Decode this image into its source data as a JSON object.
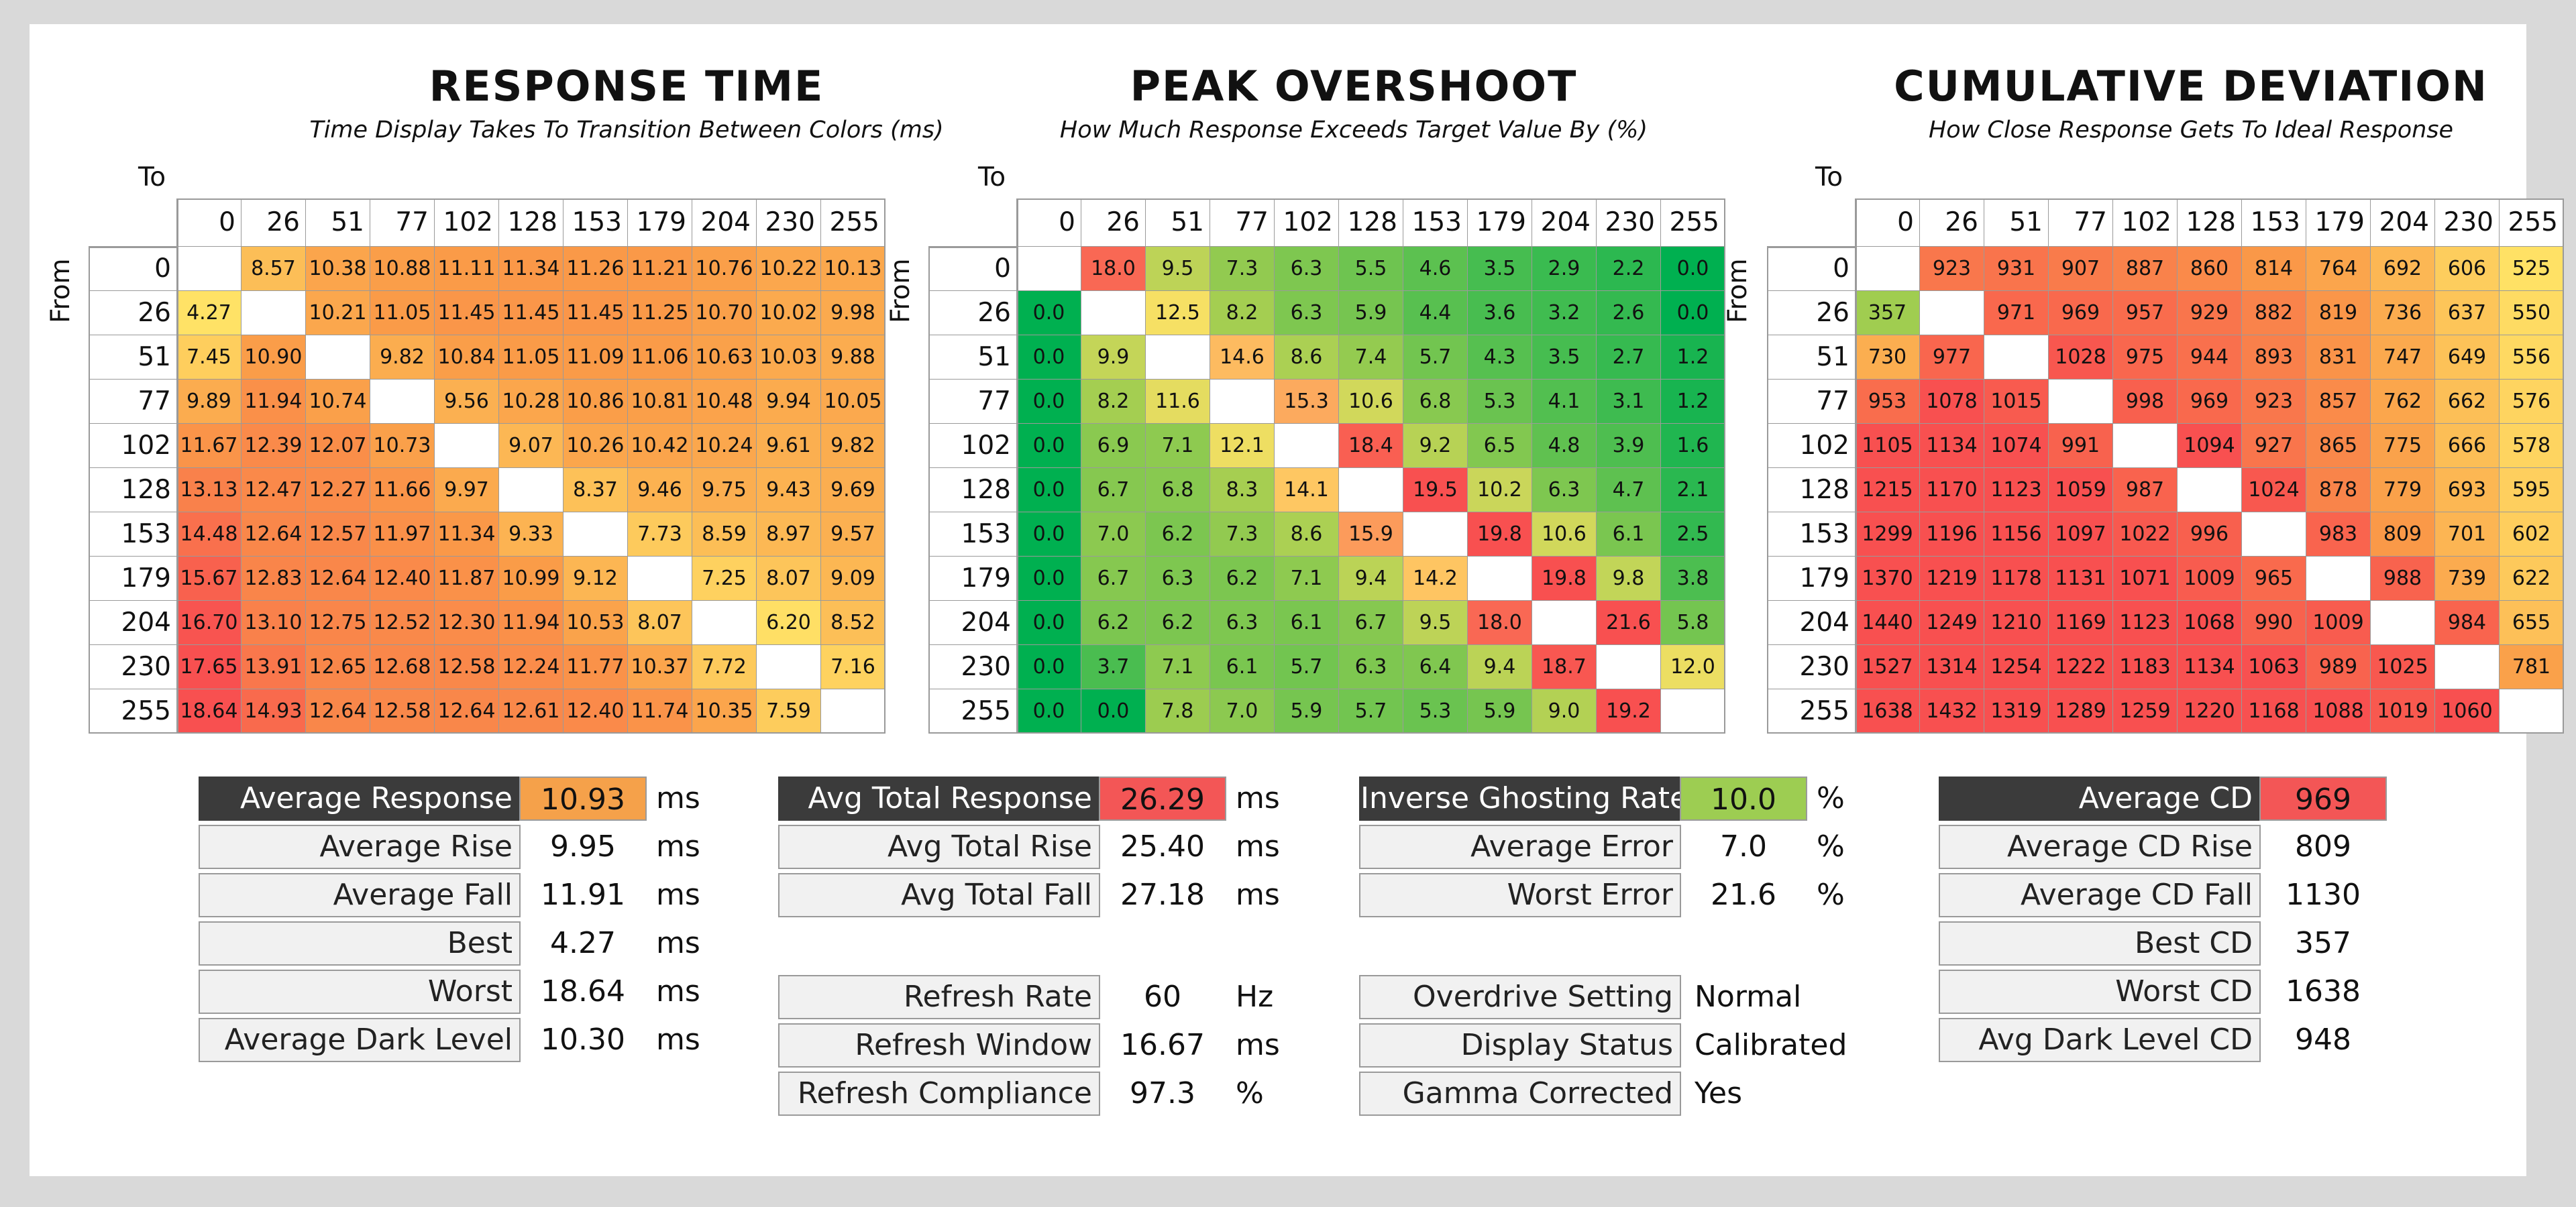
{
  "chart_data": [
    {
      "type": "heatmap",
      "title": "RESPONSE TIME",
      "subtitle": "Time Display Takes To Transition Between Colors (ms)",
      "xlabel": "To",
      "ylabel": "From",
      "color_scale": "low = yellow, high = red",
      "categories": [
        "0",
        "26",
        "51",
        "77",
        "102",
        "128",
        "153",
        "179",
        "204",
        "230",
        "255"
      ],
      "values": [
        [
          null,
          "8.57",
          "10.38",
          "10.88",
          "11.11",
          "11.34",
          "11.26",
          "11.21",
          "10.76",
          "10.22",
          "10.13"
        ],
        [
          "4.27",
          null,
          "10.21",
          "11.05",
          "11.45",
          "11.45",
          "11.45",
          "11.25",
          "10.70",
          "10.02",
          "9.98"
        ],
        [
          "7.45",
          "10.90",
          null,
          "9.82",
          "10.84",
          "11.05",
          "11.09",
          "11.06",
          "10.63",
          "10.03",
          "9.88"
        ],
        [
          "9.89",
          "11.94",
          "10.74",
          null,
          "9.56",
          "10.28",
          "10.86",
          "10.81",
          "10.48",
          "9.94",
          "10.05"
        ],
        [
          "11.67",
          "12.39",
          "12.07",
          "10.73",
          null,
          "9.07",
          "10.26",
          "10.42",
          "10.24",
          "9.61",
          "9.82"
        ],
        [
          "13.13",
          "12.47",
          "12.27",
          "11.66",
          "9.97",
          null,
          "8.37",
          "9.46",
          "9.75",
          "9.43",
          "9.69"
        ],
        [
          "14.48",
          "12.64",
          "12.57",
          "11.97",
          "11.34",
          "9.33",
          null,
          "7.73",
          "8.59",
          "8.97",
          "9.57"
        ],
        [
          "15.67",
          "12.83",
          "12.64",
          "12.40",
          "11.87",
          "10.99",
          "9.12",
          null,
          "7.25",
          "8.07",
          "9.09"
        ],
        [
          "16.70",
          "13.10",
          "12.75",
          "12.52",
          "12.30",
          "11.94",
          "10.53",
          "8.07",
          null,
          "6.20",
          "8.52"
        ],
        [
          "17.65",
          "13.91",
          "12.65",
          "12.68",
          "12.58",
          "12.24",
          "11.77",
          "10.37",
          "7.72",
          null,
          "7.16"
        ],
        [
          "18.64",
          "14.93",
          "12.64",
          "12.58",
          "12.64",
          "12.61",
          "12.40",
          "11.74",
          "10.35",
          "7.59",
          null
        ]
      ]
    },
    {
      "type": "heatmap",
      "title": "PEAK OVERSHOOT",
      "subtitle": "How Much Response Exceeds Target Value By (%)",
      "xlabel": "To",
      "ylabel": "From",
      "color_scale": "low = green, high = red",
      "categories": [
        "0",
        "26",
        "51",
        "77",
        "102",
        "128",
        "153",
        "179",
        "204",
        "230",
        "255"
      ],
      "values": [
        [
          null,
          "18.0",
          "9.5",
          "7.3",
          "6.3",
          "5.5",
          "4.6",
          "3.5",
          "2.9",
          "2.2",
          "0.0"
        ],
        [
          "0.0",
          null,
          "12.5",
          "8.2",
          "6.3",
          "5.9",
          "4.4",
          "3.6",
          "3.2",
          "2.6",
          "0.0"
        ],
        [
          "0.0",
          "9.9",
          null,
          "14.6",
          "8.6",
          "7.4",
          "5.7",
          "4.3",
          "3.5",
          "2.7",
          "1.2"
        ],
        [
          "0.0",
          "8.2",
          "11.6",
          null,
          "15.3",
          "10.6",
          "6.8",
          "5.3",
          "4.1",
          "3.1",
          "1.2"
        ],
        [
          "0.0",
          "6.9",
          "7.1",
          "12.1",
          null,
          "18.4",
          "9.2",
          "6.5",
          "4.8",
          "3.9",
          "1.6"
        ],
        [
          "0.0",
          "6.7",
          "6.8",
          "8.3",
          "14.1",
          null,
          "19.5",
          "10.2",
          "6.3",
          "4.7",
          "2.1"
        ],
        [
          "0.0",
          "7.0",
          "6.2",
          "7.3",
          "8.6",
          "15.9",
          null,
          "19.8",
          "10.6",
          "6.1",
          "2.5"
        ],
        [
          "0.0",
          "6.7",
          "6.3",
          "6.2",
          "7.1",
          "9.4",
          "14.2",
          null,
          "19.8",
          "9.8",
          "3.8"
        ],
        [
          "0.0",
          "6.2",
          "6.2",
          "6.3",
          "6.1",
          "6.7",
          "9.5",
          "18.0",
          null,
          "21.6",
          "5.8"
        ],
        [
          "0.0",
          "3.7",
          "7.1",
          "6.1",
          "5.7",
          "6.3",
          "6.4",
          "9.4",
          "18.7",
          null,
          "12.0"
        ],
        [
          "0.0",
          "0.0",
          "7.8",
          "7.0",
          "5.9",
          "5.7",
          "5.3",
          "5.9",
          "9.0",
          "19.2",
          null
        ]
      ]
    },
    {
      "type": "heatmap",
      "title": "CUMULATIVE DEVIATION",
      "subtitle": "How Close Response Gets To Ideal Response",
      "xlabel": "To",
      "ylabel": "From",
      "color_scale": "low = green, mid = yellow, high = red",
      "categories": [
        "0",
        "26",
        "51",
        "77",
        "102",
        "128",
        "153",
        "179",
        "204",
        "230",
        "255"
      ],
      "values": [
        [
          null,
          "923",
          "931",
          "907",
          "887",
          "860",
          "814",
          "764",
          "692",
          "606",
          "525"
        ],
        [
          "357",
          null,
          "971",
          "969",
          "957",
          "929",
          "882",
          "819",
          "736",
          "637",
          "550"
        ],
        [
          "730",
          "977",
          null,
          "1028",
          "975",
          "944",
          "893",
          "831",
          "747",
          "649",
          "556"
        ],
        [
          "953",
          "1078",
          "1015",
          null,
          "998",
          "969",
          "923",
          "857",
          "762",
          "662",
          "576"
        ],
        [
          "1105",
          "1134",
          "1074",
          "991",
          null,
          "1094",
          "927",
          "865",
          "775",
          "666",
          "578"
        ],
        [
          "1215",
          "1170",
          "1123",
          "1059",
          "987",
          null,
          "1024",
          "878",
          "779",
          "693",
          "595"
        ],
        [
          "1299",
          "1196",
          "1156",
          "1097",
          "1022",
          "996",
          null,
          "983",
          "809",
          "701",
          "602"
        ],
        [
          "1370",
          "1219",
          "1178",
          "1131",
          "1071",
          "1009",
          "965",
          null,
          "988",
          "739",
          "622"
        ],
        [
          "1440",
          "1249",
          "1210",
          "1169",
          "1123",
          "1068",
          "990",
          "1009",
          null,
          "984",
          "655"
        ],
        [
          "1527",
          "1314",
          "1254",
          "1222",
          "1183",
          "1134",
          "1063",
          "989",
          "1025",
          null,
          "781"
        ],
        [
          "1638",
          "1432",
          "1319",
          "1289",
          "1259",
          "1220",
          "1168",
          "1088",
          "1019",
          "1060",
          null
        ]
      ]
    }
  ],
  "stats": {
    "response": [
      {
        "label": "Average Response",
        "value": "10.93",
        "unit": "ms",
        "dark": true,
        "color": "#f5a14a"
      },
      {
        "label": "Average Rise",
        "value": "9.95",
        "unit": "ms"
      },
      {
        "label": "Average Fall",
        "value": "11.91",
        "unit": "ms"
      },
      {
        "label": "Best",
        "value": "4.27",
        "unit": "ms"
      },
      {
        "label": "Worst",
        "value": "18.64",
        "unit": "ms"
      },
      {
        "label": "Average Dark Level",
        "value": "10.30",
        "unit": "ms"
      }
    ],
    "total": [
      {
        "label": "Avg Total Response",
        "value": "26.29",
        "unit": "ms",
        "dark": true,
        "color": "#f35656"
      },
      {
        "label": "Avg Total Rise",
        "value": "25.40",
        "unit": "ms"
      },
      {
        "label": "Avg Total Fall",
        "value": "27.18",
        "unit": "ms"
      }
    ],
    "refresh": [
      {
        "label": "Refresh Rate",
        "value": "60",
        "unit": "Hz"
      },
      {
        "label": "Refresh Window",
        "value": "16.67",
        "unit": "ms"
      },
      {
        "label": "Refresh Compliance",
        "value": "97.3",
        "unit": "%"
      }
    ],
    "overshoot": [
      {
        "label": "Inverse Ghosting Rate",
        "value": "10.0",
        "unit": "%",
        "dark": true,
        "color": "#9dcd52"
      },
      {
        "label": "Average Error",
        "value": "7.0",
        "unit": "%"
      },
      {
        "label": "Worst Error",
        "value": "21.6",
        "unit": "%"
      }
    ],
    "settings": [
      {
        "label": "Overdrive Setting",
        "value": "Normal",
        "unit": ""
      },
      {
        "label": "Display Status",
        "value": "Calibrated",
        "unit": ""
      },
      {
        "label": "Gamma Corrected",
        "value": "Yes",
        "unit": ""
      }
    ],
    "cd": [
      {
        "label": "Average CD",
        "value": "969",
        "unit": "",
        "dark": true,
        "color": "#f35656"
      },
      {
        "label": "Average CD Rise",
        "value": "809",
        "unit": ""
      },
      {
        "label": "Average CD Fall",
        "value": "1130",
        "unit": ""
      },
      {
        "label": "Best CD",
        "value": "357",
        "unit": ""
      },
      {
        "label": "Worst CD",
        "value": "1638",
        "unit": ""
      },
      {
        "label": "Avg Dark Level CD",
        "value": "948",
        "unit": ""
      }
    ]
  }
}
